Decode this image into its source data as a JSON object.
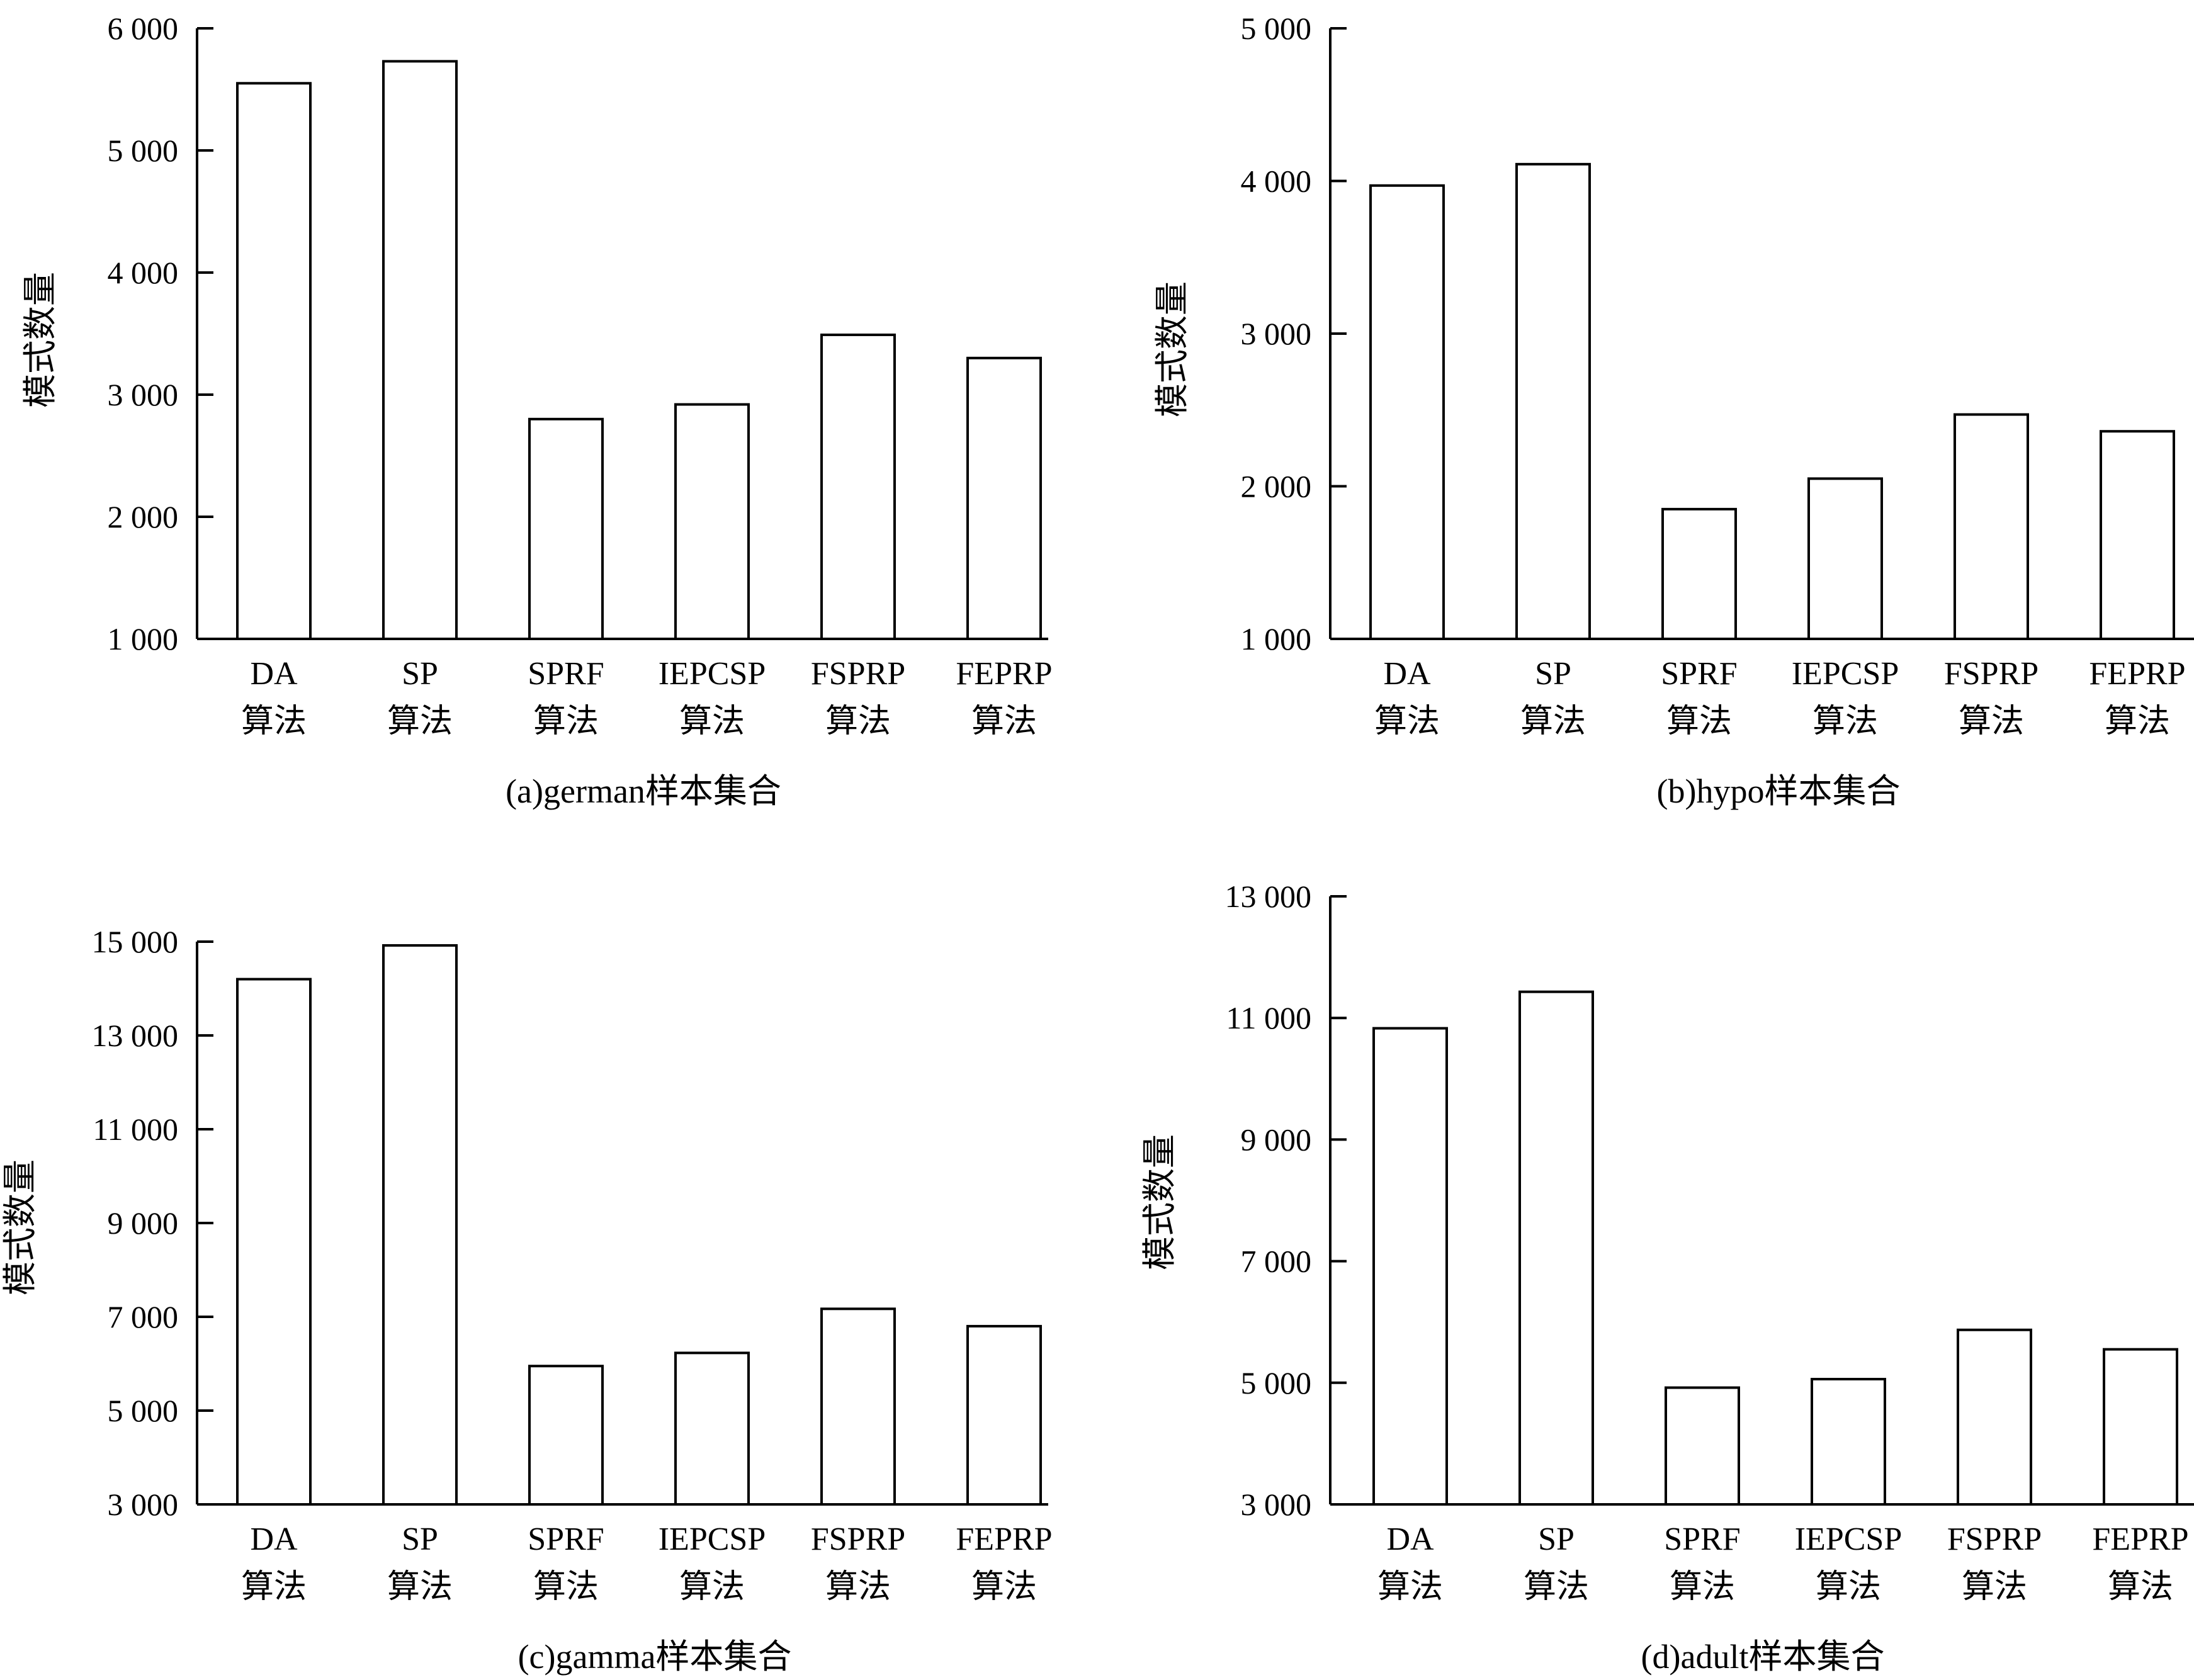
{
  "figure": {
    "line_color": "#000000",
    "bar_fill": "#ffffff"
  },
  "chart_data": [
    {
      "type": "bar",
      "title": "(a)german样本集合",
      "ylabel": "模式数量",
      "xlabel": "",
      "categories": [
        "DA|算法",
        "SP|算法",
        "SPRF|算法",
        "IEPCSP|算法",
        "FSPRP|算法",
        "FEPRP|算法"
      ],
      "values": [
        5550,
        5730,
        2800,
        2920,
        3490,
        3300
      ],
      "ylim": [
        1000,
        6000
      ],
      "yticks": [
        1000,
        2000,
        3000,
        4000,
        5000,
        6000
      ],
      "ytick_labels": [
        "1 000",
        "2 000",
        "3 000",
        "4 000",
        "5 000",
        "6 000"
      ],
      "grid": false
    },
    {
      "type": "bar",
      "title": "(b)hypo样本集合",
      "ylabel": "模式数量",
      "xlabel": "",
      "categories": [
        "DA|算法",
        "SP|算法",
        "SPRF|算法",
        "IEPCSP|算法",
        "FSPRP|算法",
        "FEPRP|算法"
      ],
      "values": [
        3970,
        4110,
        1850,
        2050,
        2470,
        2360
      ],
      "ylim": [
        1000,
        5000
      ],
      "yticks": [
        1000,
        2000,
        3000,
        4000,
        5000
      ],
      "ytick_labels": [
        "1 000",
        "2 000",
        "3 000",
        "4 000",
        "5 000"
      ],
      "grid": false
    },
    {
      "type": "bar",
      "title": "(c)gamma样本集合",
      "ylabel": "模式数量",
      "xlabel": "",
      "categories": [
        "DA|算法",
        "SP|算法",
        "SPRF|算法",
        "IEPCSP|算法",
        "FSPRP|算法",
        "FEPRP|算法"
      ],
      "values": [
        14200,
        14920,
        5950,
        6230,
        7170,
        6800
      ],
      "ylim": [
        3000,
        15000
      ],
      "yticks": [
        3000,
        5000,
        7000,
        9000,
        11000,
        13000,
        15000
      ],
      "ytick_labels": [
        "3 000",
        "5 000",
        "7 000",
        "9 000",
        "11 000",
        "13 000",
        "15 000"
      ],
      "grid": false
    },
    {
      "type": "bar",
      "title": "(d)adult样本集合",
      "ylabel": "模式数量",
      "xlabel": "",
      "categories": [
        "DA|算法",
        "SP|算法",
        "SPRF|算法",
        "IEPCSP|算法",
        "FSPRP|算法",
        "FEPRP|算法"
      ],
      "values": [
        10830,
        11430,
        4920,
        5060,
        5870,
        5550
      ],
      "ylim": [
        3000,
        13000
      ],
      "yticks": [
        3000,
        5000,
        7000,
        9000,
        11000,
        13000
      ],
      "ytick_labels": [
        "3 000",
        "5 000",
        "7 000",
        "9 000",
        "11 000",
        "13 000"
      ],
      "grid": false
    }
  ]
}
